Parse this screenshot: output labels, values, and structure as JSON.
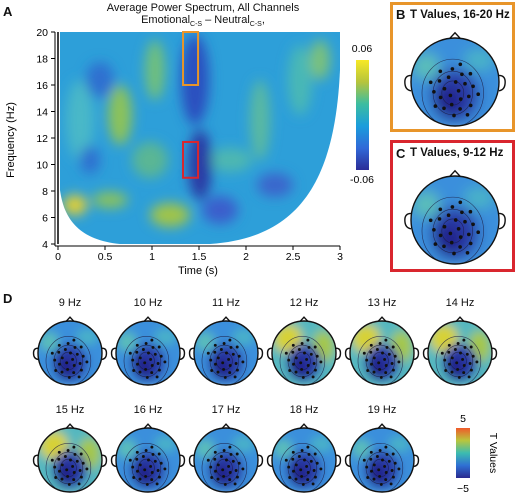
{
  "panelA": {
    "letter": "A",
    "title_line1": "Average  Power Spectrum, All Channels",
    "title_emo": "Emotional",
    "title_sub1": "C-S",
    "title_minus": " – Neutral",
    "title_sub2": "C-S",
    "title_end": ",",
    "xlabel": "Time (s)",
    "ylabel": "Frequency (Hz)",
    "xticks": [
      "0",
      "0.5",
      "1",
      "1.5",
      "2",
      "2.5",
      "3"
    ],
    "yticks": [
      "4",
      "6",
      "8",
      "10",
      "12",
      "14",
      "16",
      "18",
      "20"
    ],
    "colorbar_max": "0.06",
    "colorbar_min": "-0.06",
    "boxes": [
      {
        "name": "16-20 Hz",
        "color": "#e8952a",
        "t0": 1.33,
        "t1": 1.49,
        "f0": 16,
        "f1": 20
      },
      {
        "name": "9-12 Hz",
        "color": "#d9262e",
        "t0": 1.33,
        "t1": 1.49,
        "f0": 9,
        "f1": 11.7
      }
    ]
  },
  "panelB": {
    "letter": "B",
    "title": "T Values, 16-20 Hz",
    "border": "#e8952a"
  },
  "panelC": {
    "letter": "C",
    "title": "T Values, 9-12 Hz",
    "border": "#d9262e"
  },
  "panelD": {
    "letter": "D",
    "row1": [
      "9 Hz",
      "10 Hz",
      "11 Hz",
      "12 Hz",
      "13 Hz",
      "14 Hz"
    ],
    "row2": [
      "15 Hz",
      "16 Hz",
      "17 Hz",
      "18 Hz",
      "19 Hz"
    ],
    "colorbar_max": "5",
    "colorbar_min": "−5",
    "colorbar_label": "T Values"
  }
}
